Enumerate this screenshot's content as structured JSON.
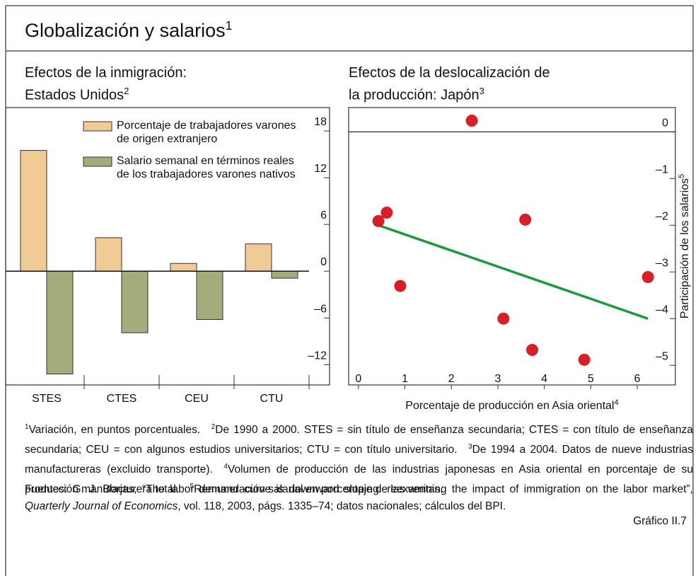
{
  "title": "Globalización y salarios",
  "title_sup": "1",
  "chart_data": [
    {
      "type": "bar",
      "title": [
        "Efectos de la inmigración:",
        "Estados Unidos"
      ],
      "title_sup": "2",
      "categories": [
        "STES",
        "CTES",
        "CEU",
        "CTU"
      ],
      "series": [
        {
          "name": "Porcentaje de trabajadores varones de origen extranjero",
          "color": "#f2cb94",
          "values": [
            15.5,
            4.3,
            1.0,
            3.5
          ]
        },
        {
          "name": "Salario semanal en términos reales de los trabajadores varones nativos",
          "color": "#a3ad7c",
          "values": [
            -13.2,
            -7.9,
            -6.2,
            -0.9
          ]
        }
      ],
      "ylim": [
        -14.6,
        21
      ],
      "yticks": [
        {
          "value": -12,
          "label": "–12"
        },
        {
          "value": -6,
          "label": "–6"
        },
        0,
        6,
        12,
        18
      ],
      "zero_line": true,
      "grid": false
    },
    {
      "type": "scatter",
      "title": [
        "Efectos de la deslocalización de",
        "la producción: Japón"
      ],
      "title_sup": "3",
      "x_label": "Porcentaje de producción en Asia oriental",
      "x_label_sup": "4",
      "y_label": "Participación de los salarios",
      "y_label_sup": "5",
      "x": [
        2.44,
        0.61,
        0.43,
        3.59,
        0.9,
        6.23,
        3.12,
        3.74,
        4.86
      ],
      "y": [
        0.24,
        -1.73,
        -1.91,
        -1.88,
        -3.3,
        -3.11,
        -4.0,
        -4.67,
        -4.88
      ],
      "color": "#d71f27",
      "trend": {
        "x": [
          0.43,
          6.23
        ],
        "y": [
          -2.0,
          -4.0
        ],
        "color": "#1e9a3c"
      },
      "xlim": [
        -0.21,
        6.82
      ],
      "ylim": [
        -5.42,
        0.52
      ],
      "xticks": [
        0,
        1,
        2,
        3,
        4,
        5,
        6
      ],
      "yticks": [
        0,
        {
          "value": -1,
          "label": "–1"
        },
        {
          "value": -2,
          "label": "–2"
        },
        {
          "value": -3,
          "label": "–3"
        },
        {
          "value": -4,
          "label": "–4"
        },
        {
          "value": -5,
          "label": "–5"
        }
      ],
      "zero_line": true,
      "grid": false
    }
  ],
  "footnotes": [
    {
      "mark": "1",
      "text": "Variación, en puntos porcentuales."
    },
    {
      "mark": "2",
      "text": "De 1990 a 2000. STES = sin título de enseñanza secundaria; CTES = con título de enseñanza secundaria; CEU = con algunos estudios universitarios; CTU = con título universitario."
    },
    {
      "mark": "3",
      "text": "De 1994 a 2004. Datos de nueve industrias manufactureras (excluido transporte)."
    },
    {
      "mark": "4",
      "text": "Volumen de producción de las industrias japonesas en Asia oriental en porcentaje de su producción manufacturera total."
    },
    {
      "mark": "5",
      "text": "Remuneración salarial en porcentaje de las ventas."
    }
  ],
  "sources": [
    "Fuentes: G. J. Borjas, “The labor demand curve is downward sloping: reexamining the impact of immigration on the labor market”, ",
    "Quarterly Journal of Economics",
    ", vol. 118, 2003, págs. 1335–74; datos nacionales; cálculos del BPI."
  ],
  "figure_label": "Gráfico II.7"
}
